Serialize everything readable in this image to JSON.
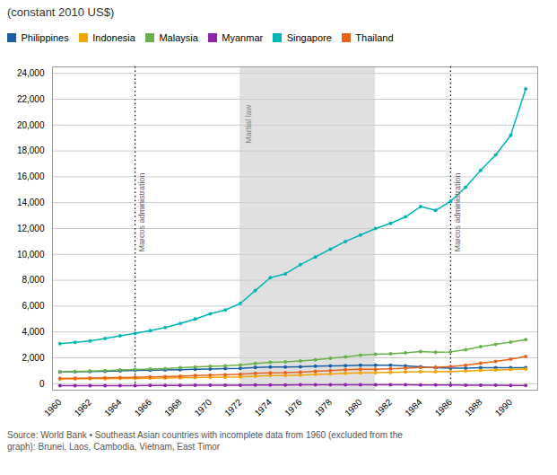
{
  "chart_data": {
    "type": "line",
    "title": "(constant 2010 US$)",
    "caption": "Source: World Bank • Southeast Asian countries with incomplete data from 1960 (excluded from the\ngraph): Brunei, Laos, Cambodia, Vietnam, East Timor",
    "x": [
      1960,
      1961,
      1962,
      1963,
      1964,
      1965,
      1966,
      1967,
      1968,
      1969,
      1970,
      1971,
      1972,
      1973,
      1974,
      1975,
      1976,
      1977,
      1978,
      1979,
      1980,
      1981,
      1982,
      1983,
      1984,
      1985,
      1986,
      1987,
      1988,
      1989,
      1990,
      1991
    ],
    "xlim": [
      1959.5,
      1991.8
    ],
    "xticks": [
      1960,
      1962,
      1964,
      1966,
      1968,
      1970,
      1972,
      1974,
      1976,
      1978,
      1980,
      1982,
      1984,
      1986,
      1988,
      1990
    ],
    "ylim": [
      -500,
      24500
    ],
    "yticks": [
      0,
      {
        "value": 2000,
        "label": "2,000"
      },
      {
        "value": 4000,
        "label": "4,000"
      },
      {
        "value": 6000,
        "label": "6,000"
      },
      {
        "value": 8000,
        "label": "8,000"
      },
      {
        "value": 10000,
        "label": "10,000"
      },
      {
        "value": 12000,
        "label": "12,000"
      },
      {
        "value": 14000,
        "label": "14,000"
      },
      {
        "value": 16000,
        "label": "16,000"
      },
      {
        "value": 18000,
        "label": "18,000"
      },
      {
        "value": 20000,
        "label": "20,000"
      },
      {
        "value": 22000,
        "label": "22,000"
      },
      {
        "value": 24000,
        "label": "24,000"
      }
    ],
    "grid": "y",
    "legend": "top",
    "marker": "circle",
    "series": [
      {
        "name": "Philippines",
        "color": "#1a5fa6",
        "values": [
          900,
          920,
          940,
          960,
          1000,
          1020,
          1040,
          1060,
          1080,
          1120,
          1140,
          1160,
          1180,
          1250,
          1280,
          1280,
          1310,
          1360,
          1380,
          1400,
          1420,
          1430,
          1430,
          1380,
          1310,
          1230,
          1200,
          1210,
          1240,
          1230,
          1230,
          1240
        ]
      },
      {
        "name": "Indonesia",
        "color": "#f0a500",
        "values": [
          370,
          375,
          380,
          390,
          400,
          410,
          420,
          435,
          455,
          475,
          495,
          510,
          530,
          580,
          620,
          630,
          670,
          710,
          750,
          800,
          840,
          860,
          880,
          900,
          920,
          920,
          940,
          970,
          1020,
          1060,
          1100,
          1140
        ]
      },
      {
        "name": "Malaysia",
        "color": "#6ab04c",
        "values": [
          900,
          940,
          980,
          1010,
          1060,
          1090,
          1130,
          1170,
          1230,
          1290,
          1340,
          1380,
          1440,
          1560,
          1660,
          1680,
          1760,
          1850,
          1960,
          2070,
          2200,
          2270,
          2310,
          2390,
          2490,
          2440,
          2460,
          2620,
          2870,
          3040,
          3220,
          3400
        ]
      },
      {
        "name": "Myanmar",
        "color": "#8e24aa",
        "values": [
          -150,
          -155,
          -160,
          -155,
          -150,
          -145,
          -140,
          -135,
          -130,
          -125,
          -120,
          -115,
          -110,
          -105,
          -100,
          -95,
          -90,
          -90,
          -85,
          -80,
          -80,
          -80,
          -85,
          -90,
          -95,
          -100,
          -105,
          -110,
          -115,
          -120,
          -130,
          -140
        ]
      },
      {
        "name": "Singapore",
        "color": "#00b5b5",
        "values": [
          3100,
          3200,
          3300,
          3500,
          3700,
          3900,
          4100,
          4350,
          4650,
          5000,
          5400,
          5700,
          6200,
          7200,
          8200,
          8500,
          9200,
          9800,
          10400,
          11000,
          11500,
          12000,
          12400,
          12900,
          13700,
          13400,
          14100,
          15200,
          16500,
          17700,
          19200,
          22800
        ]
      },
      {
        "name": "Thailand",
        "color": "#e8621a",
        "values": [
          400,
          415,
          430,
          450,
          475,
          495,
          520,
          545,
          580,
          620,
          660,
          690,
          730,
          800,
          840,
          850,
          890,
          950,
          1010,
          1080,
          1110,
          1120,
          1150,
          1200,
          1260,
          1270,
          1320,
          1420,
          1580,
          1730,
          1900,
          2100
        ]
      }
    ],
    "annotations": [
      {
        "type": "vline",
        "x": 1965,
        "text": "Marcos administration"
      },
      {
        "type": "vline",
        "x": 1986,
        "text": "Marcos administration"
      },
      {
        "type": "span",
        "x": [
          1972,
          1981
        ],
        "text": "Martial law",
        "color": "#e0e0e0"
      }
    ]
  }
}
